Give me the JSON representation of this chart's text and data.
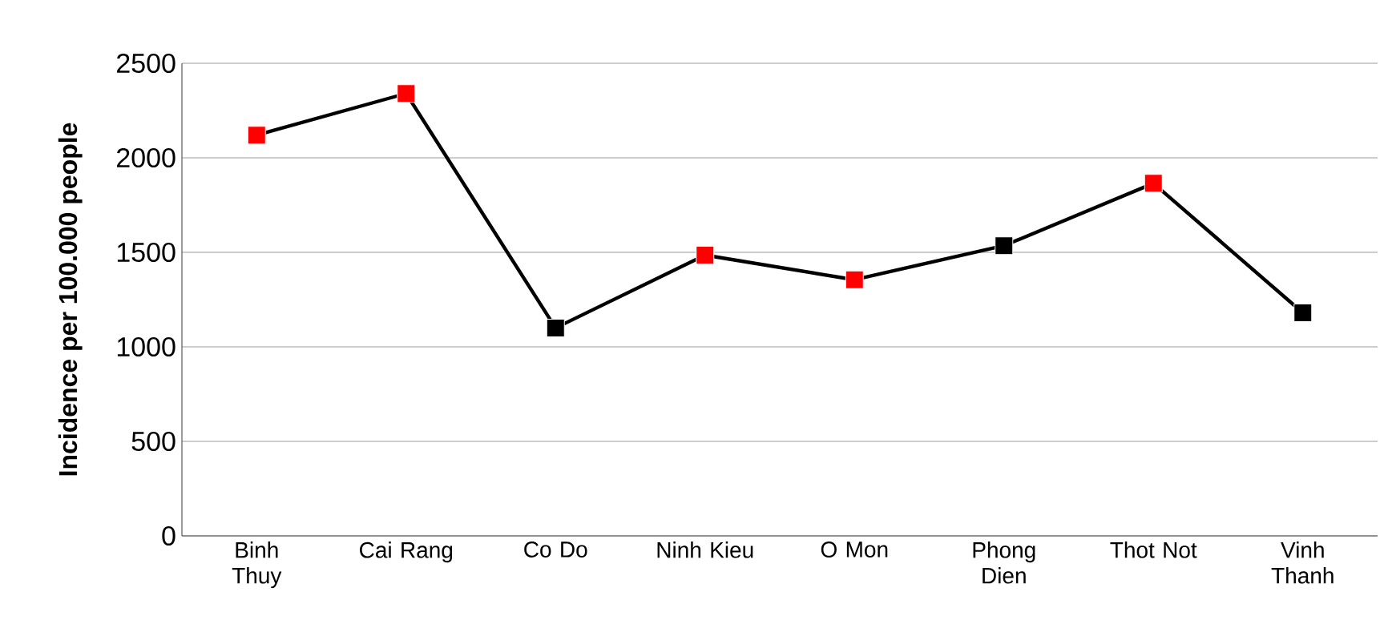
{
  "chart_data": {
    "type": "line",
    "ylabel": "Incidence  per 100.000 people",
    "categories": [
      "Binh Thuy",
      "Cai Rang",
      "Co Do",
      "Ninh Kieu",
      "O Mon",
      "Phong Dien",
      "Thot Not",
      "Vinh Thanh"
    ],
    "series": [
      {
        "color": "#000000",
        "values": [
          2120,
          2340,
          1100,
          1485,
          1355,
          1535,
          1865,
          1180
        ],
        "colors": [
          "#ff0000",
          "#ff0000",
          "#000000",
          "#ff0000",
          "#ff0000",
          "#000000",
          "#ff0000",
          "#000000"
        ]
      }
    ],
    "ylim": [
      0,
      2500
    ],
    "yticks": [
      0,
      500,
      1000,
      1500,
      2000,
      2500
    ],
    "grid": "y",
    "marker": "square",
    "line_style": "solid"
  }
}
